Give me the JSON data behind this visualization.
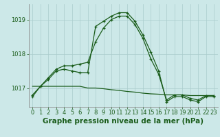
{
  "title": "Graphe pression niveau de la mer (hPa)",
  "background_color": "#cce8e8",
  "grid_color": "#aacccc",
  "line_color": "#1a5c1a",
  "x_values": [
    0,
    1,
    2,
    3,
    4,
    5,
    6,
    7,
    8,
    9,
    10,
    11,
    12,
    13,
    14,
    15,
    16,
    17,
    18,
    19,
    20,
    21,
    22,
    23
  ],
  "series_main": [
    1016.8,
    1017.05,
    1017.25,
    1017.5,
    1017.55,
    1017.5,
    1017.45,
    1017.45,
    1018.8,
    1018.95,
    1019.1,
    1019.2,
    1019.2,
    1018.95,
    1018.55,
    1018.05,
    1017.5,
    1016.6,
    1016.75,
    1016.75,
    1016.65,
    1016.6,
    1016.75,
    1016.75
  ],
  "series_smooth": [
    1016.75,
    1017.05,
    1017.3,
    1017.55,
    1017.65,
    1017.65,
    1017.7,
    1017.75,
    1018.35,
    1018.75,
    1019.0,
    1019.1,
    1019.1,
    1018.85,
    1018.45,
    1017.85,
    1017.4,
    1016.65,
    1016.8,
    1016.8,
    1016.7,
    1016.65,
    1016.78,
    1016.78
  ],
  "series_trend": [
    1017.05,
    1017.05,
    1017.05,
    1017.05,
    1017.05,
    1017.05,
    1017.05,
    1017.0,
    1017.0,
    1016.98,
    1016.95,
    1016.93,
    1016.9,
    1016.88,
    1016.85,
    1016.83,
    1016.82,
    1016.8,
    1016.8,
    1016.8,
    1016.78,
    1016.78,
    1016.78,
    1016.78
  ],
  "ylim": [
    1016.45,
    1019.45
  ],
  "yticks": [
    1017,
    1018,
    1019
  ],
  "xlim": [
    -0.5,
    23.5
  ],
  "title_fontsize": 7.5,
  "tick_fontsize": 6
}
